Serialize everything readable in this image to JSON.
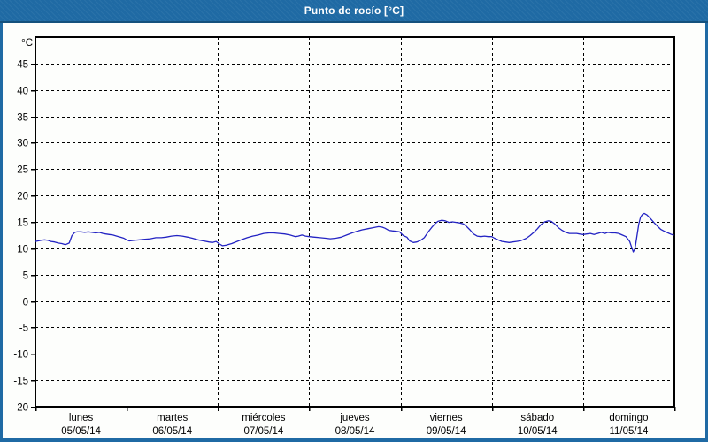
{
  "header": {
    "title": "Punto de rocío [°C]"
  },
  "colors": {
    "titlebar_bg": "#1f6aa4",
    "titlebar_border_bottom": "#14517d",
    "frame_border": "#1f6aa4",
    "content_bg": "#fdfefc",
    "plot_border": "#000000",
    "grid": "#000000",
    "tick_text": "#000000",
    "title_text": "#ffffff",
    "series_line": "#2323c3"
  },
  "chart_data": {
    "type": "line",
    "title": "Punto de rocío [°C]",
    "ylabel": "°C",
    "ylim": [
      -20,
      50
    ],
    "ytick_min": -20,
    "ytick_max": 45,
    "ytick_step": 5,
    "grid": "dashed",
    "legend_position": "none",
    "x_range_days": [
      0,
      7
    ],
    "x_categories": [
      {
        "name": "lunes",
        "date": "05/05/14"
      },
      {
        "name": "martes",
        "date": "06/05/14"
      },
      {
        "name": "miércoles",
        "date": "07/05/14"
      },
      {
        "name": "jueves",
        "date": "08/05/14"
      },
      {
        "name": "viernes",
        "date": "09/05/14"
      },
      {
        "name": "sábado",
        "date": "10/05/14"
      },
      {
        "name": "domingo",
        "date": "11/05/14"
      }
    ],
    "series": [
      {
        "name": "Punto de rocío",
        "unit": "°C",
        "color": "#2323c3",
        "points": [
          [
            0.0,
            11.3
          ],
          [
            0.06,
            11.5
          ],
          [
            0.1,
            11.6
          ],
          [
            0.14,
            11.5
          ],
          [
            0.17,
            11.3
          ],
          [
            0.21,
            11.2
          ],
          [
            0.25,
            11.0
          ],
          [
            0.29,
            10.9
          ],
          [
            0.33,
            10.7
          ],
          [
            0.37,
            11.0
          ],
          [
            0.4,
            12.4
          ],
          [
            0.43,
            13.0
          ],
          [
            0.46,
            13.1
          ],
          [
            0.5,
            13.1
          ],
          [
            0.54,
            13.0
          ],
          [
            0.58,
            13.1
          ],
          [
            0.62,
            13.0
          ],
          [
            0.66,
            12.9
          ],
          [
            0.7,
            13.0
          ],
          [
            0.74,
            12.8
          ],
          [
            0.77,
            12.7
          ],
          [
            0.81,
            12.6
          ],
          [
            0.85,
            12.5
          ],
          [
            0.89,
            12.3
          ],
          [
            0.93,
            12.1
          ],
          [
            0.97,
            11.9
          ],
          [
            1.0,
            11.6
          ],
          [
            1.03,
            11.4
          ],
          [
            1.08,
            11.5
          ],
          [
            1.14,
            11.6
          ],
          [
            1.2,
            11.7
          ],
          [
            1.26,
            11.8
          ],
          [
            1.32,
            12.0
          ],
          [
            1.38,
            12.0
          ],
          [
            1.43,
            12.1
          ],
          [
            1.49,
            12.3
          ],
          [
            1.55,
            12.4
          ],
          [
            1.61,
            12.3
          ],
          [
            1.67,
            12.1
          ],
          [
            1.72,
            11.9
          ],
          [
            1.78,
            11.6
          ],
          [
            1.84,
            11.4
          ],
          [
            1.9,
            11.2
          ],
          [
            1.94,
            11.1
          ],
          [
            1.98,
            11.3
          ],
          [
            2.01,
            10.9
          ],
          [
            2.05,
            10.5
          ],
          [
            2.09,
            10.6
          ],
          [
            2.15,
            10.9
          ],
          [
            2.21,
            11.3
          ],
          [
            2.27,
            11.7
          ],
          [
            2.32,
            12.0
          ],
          [
            2.38,
            12.3
          ],
          [
            2.44,
            12.5
          ],
          [
            2.5,
            12.8
          ],
          [
            2.56,
            12.9
          ],
          [
            2.61,
            12.9
          ],
          [
            2.67,
            12.8
          ],
          [
            2.73,
            12.7
          ],
          [
            2.79,
            12.5
          ],
          [
            2.85,
            12.2
          ],
          [
            2.88,
            12.3
          ],
          [
            2.92,
            12.5
          ],
          [
            2.96,
            12.3
          ],
          [
            3.0,
            12.2
          ],
          [
            3.06,
            12.1
          ],
          [
            3.12,
            12.0
          ],
          [
            3.18,
            11.9
          ],
          [
            3.23,
            11.8
          ],
          [
            3.29,
            11.9
          ],
          [
            3.35,
            12.1
          ],
          [
            3.41,
            12.5
          ],
          [
            3.47,
            12.9
          ],
          [
            3.52,
            13.2
          ],
          [
            3.58,
            13.5
          ],
          [
            3.64,
            13.7
          ],
          [
            3.7,
            13.9
          ],
          [
            3.76,
            14.1
          ],
          [
            3.8,
            14.0
          ],
          [
            3.83,
            13.8
          ],
          [
            3.87,
            13.4
          ],
          [
            3.91,
            13.3
          ],
          [
            3.95,
            13.2
          ],
          [
            3.99,
            13.1
          ],
          [
            4.03,
            12.4
          ],
          [
            4.07,
            12.1
          ],
          [
            4.1,
            11.4
          ],
          [
            4.14,
            11.1
          ],
          [
            4.18,
            11.2
          ],
          [
            4.22,
            11.5
          ],
          [
            4.26,
            12.0
          ],
          [
            4.3,
            13.0
          ],
          [
            4.34,
            13.9
          ],
          [
            4.38,
            14.7
          ],
          [
            4.41,
            15.1
          ],
          [
            4.45,
            15.3
          ],
          [
            4.49,
            15.2
          ],
          [
            4.53,
            14.9
          ],
          [
            4.57,
            15.0
          ],
          [
            4.61,
            14.9
          ],
          [
            4.65,
            14.8
          ],
          [
            4.69,
            14.6
          ],
          [
            4.72,
            14.2
          ],
          [
            4.76,
            13.5
          ],
          [
            4.8,
            12.7
          ],
          [
            4.84,
            12.3
          ],
          [
            4.88,
            12.2
          ],
          [
            4.92,
            12.3
          ],
          [
            4.96,
            12.2
          ],
          [
            5.0,
            12.2
          ],
          [
            5.03,
            11.9
          ],
          [
            5.07,
            11.6
          ],
          [
            5.11,
            11.3
          ],
          [
            5.15,
            11.2
          ],
          [
            5.19,
            11.1
          ],
          [
            5.23,
            11.2
          ],
          [
            5.27,
            11.3
          ],
          [
            5.31,
            11.4
          ],
          [
            5.34,
            11.6
          ],
          [
            5.38,
            11.9
          ],
          [
            5.42,
            12.4
          ],
          [
            5.46,
            13.0
          ],
          [
            5.5,
            13.7
          ],
          [
            5.54,
            14.5
          ],
          [
            5.58,
            15.0
          ],
          [
            5.62,
            15.2
          ],
          [
            5.65,
            15.1
          ],
          [
            5.69,
            14.6
          ],
          [
            5.73,
            13.9
          ],
          [
            5.77,
            13.4
          ],
          [
            5.81,
            13.0
          ],
          [
            5.85,
            12.8
          ],
          [
            5.89,
            12.8
          ],
          [
            5.93,
            12.8
          ],
          [
            5.96,
            12.7
          ],
          [
            6.0,
            12.6
          ],
          [
            6.04,
            12.7
          ],
          [
            6.08,
            12.8
          ],
          [
            6.12,
            12.6
          ],
          [
            6.16,
            12.8
          ],
          [
            6.2,
            13.0
          ],
          [
            6.24,
            12.8
          ],
          [
            6.27,
            13.0
          ],
          [
            6.31,
            12.9
          ],
          [
            6.35,
            12.9
          ],
          [
            6.39,
            12.8
          ],
          [
            6.43,
            12.5
          ],
          [
            6.47,
            12.2
          ],
          [
            6.51,
            11.3
          ],
          [
            6.53,
            10.3
          ],
          [
            6.55,
            9.3
          ],
          [
            6.57,
            10.0
          ],
          [
            6.59,
            12.3
          ],
          [
            6.61,
            14.6
          ],
          [
            6.63,
            15.9
          ],
          [
            6.65,
            16.4
          ],
          [
            6.67,
            16.6
          ],
          [
            6.7,
            16.3
          ],
          [
            6.74,
            15.6
          ],
          [
            6.78,
            14.8
          ],
          [
            6.82,
            14.1
          ],
          [
            6.85,
            13.6
          ],
          [
            6.89,
            13.2
          ],
          [
            6.93,
            12.9
          ],
          [
            6.97,
            12.6
          ],
          [
            6.99,
            12.5
          ]
        ]
      }
    ]
  }
}
